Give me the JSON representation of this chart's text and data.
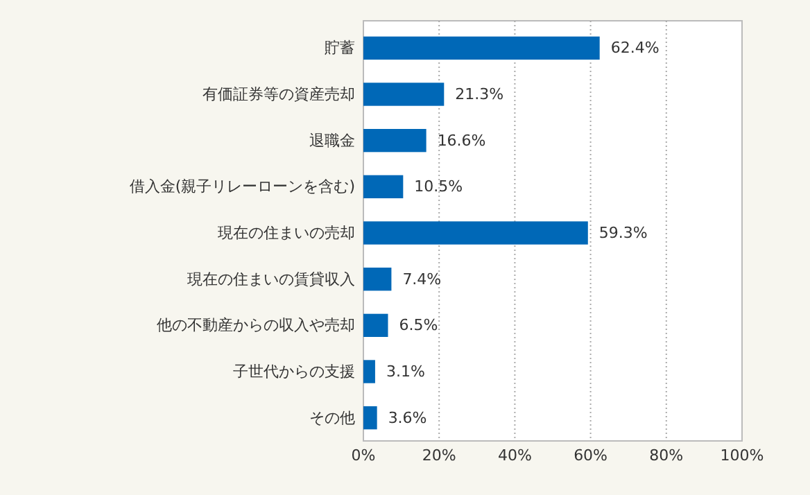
{
  "chart_data": {
    "type": "bar",
    "orientation": "horizontal",
    "categories": [
      "貯蓄",
      "有価証券等の資産売却",
      "退職金",
      "借入金(親子リレーローンを含む)",
      "現在の住まいの売却",
      "現在の住まいの賃貸収入",
      "他の不動産からの収入や売却",
      "子世代からの支援",
      "その他"
    ],
    "values": [
      62.4,
      21.3,
      16.6,
      10.5,
      59.3,
      7.4,
      6.5,
      3.1,
      3.6
    ],
    "value_labels": [
      "62.4%",
      "21.3%",
      "16.6%",
      "10.5%",
      "59.3%",
      "7.4%",
      "6.5%",
      "3.1%",
      "3.6%"
    ],
    "color": "#0068b7",
    "xlim": [
      0,
      100
    ],
    "xticks": [
      {
        "value": 0,
        "label": "0%"
      },
      {
        "value": 20,
        "label": "20%"
      },
      {
        "value": 40,
        "label": "40%"
      },
      {
        "value": 60,
        "label": "60%"
      },
      {
        "value": 80,
        "label": "80%"
      },
      {
        "value": 100,
        "label": "100%"
      }
    ],
    "grid": "x"
  }
}
